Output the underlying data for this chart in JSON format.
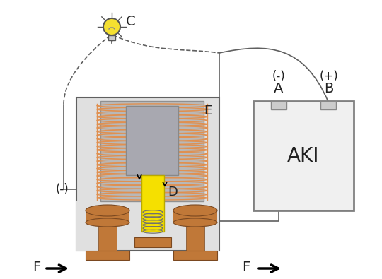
{
  "bg_color": "#ffffff",
  "gray_coil_former": "#b8b8b8",
  "gray_core": "#a8a8b0",
  "coil_color": "#e09050",
  "yellow_plunger": "#f5e000",
  "brown_color": "#c07838",
  "housing_fill": "#e0e0e0",
  "housing_edge": "#606060",
  "aki_fill": "#f0f0f0",
  "aki_edge": "#808080",
  "wire_color": "#606060",
  "label_A": "A",
  "label_B": "B",
  "label_C": "C",
  "label_D": "D",
  "label_E": "E",
  "label_F": "F",
  "label_minus_A": "(-)",
  "label_plus_B": "(+)",
  "label_aki": "AKI",
  "label_minus_left": "(-)"
}
